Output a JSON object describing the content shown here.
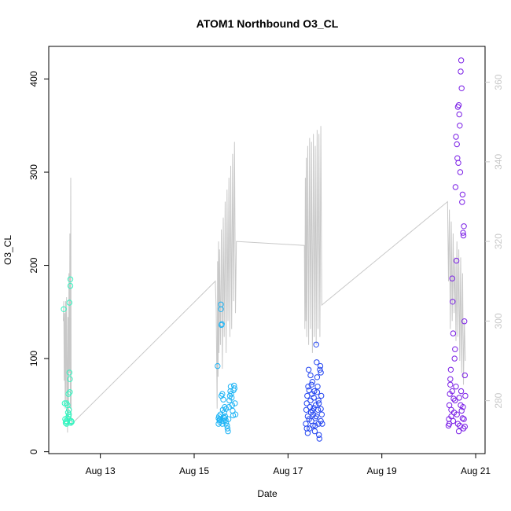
{
  "chart_data": {
    "type": "scatter",
    "title": "ATOM1 Northbound O3_CL",
    "xlabel": "Date",
    "ylabel": "O3_CL",
    "x_ticks": [
      "Aug 13",
      "Aug 15",
      "Aug 17",
      "Aug 19",
      "Aug 21"
    ],
    "x_tick_values": [
      13,
      15,
      17,
      19,
      21
    ],
    "xlim": [
      11.9,
      21.2
    ],
    "ylim": [
      -2,
      435
    ],
    "y_ticks": [
      0,
      100,
      200,
      300,
      400
    ],
    "right_axis": {
      "ylim": [
        266.7,
        369
      ],
      "ticks": [
        280,
        300,
        320,
        340,
        360
      ],
      "color": "#c8c8c8"
    },
    "grid": false,
    "series": [
      {
        "color": "#33f5c0",
        "points": [
          [
            12.22,
            153
          ],
          [
            12.24,
            52
          ],
          [
            12.25,
            35
          ],
          [
            12.26,
            31
          ],
          [
            12.27,
            33
          ],
          [
            12.28,
            30
          ],
          [
            12.29,
            32
          ],
          [
            12.3,
            50
          ],
          [
            12.31,
            42
          ],
          [
            12.32,
            62
          ],
          [
            12.33,
            45
          ],
          [
            12.34,
            85
          ],
          [
            12.34,
            160
          ],
          [
            12.35,
            64
          ],
          [
            12.35,
            78
          ],
          [
            12.36,
            178
          ],
          [
            12.36,
            185
          ],
          [
            12.37,
            31
          ],
          [
            12.38,
            33
          ],
          [
            12.39,
            32
          ],
          [
            12.3,
            36
          ],
          [
            12.32,
            38
          ],
          [
            12.28,
            52
          ],
          [
            12.33,
            40
          ]
        ]
      },
      {
        "color": "#1eb4f5",
        "points": [
          [
            15.5,
            92
          ],
          [
            15.52,
            36
          ],
          [
            15.53,
            38
          ],
          [
            15.54,
            34
          ],
          [
            15.55,
            35
          ],
          [
            15.56,
            40
          ],
          [
            15.57,
            158
          ],
          [
            15.57,
            153
          ],
          [
            15.58,
            136
          ],
          [
            15.59,
            137
          ],
          [
            15.6,
            30
          ],
          [
            15.61,
            45
          ],
          [
            15.62,
            33
          ],
          [
            15.63,
            37
          ],
          [
            15.64,
            42
          ],
          [
            15.65,
            36
          ],
          [
            15.66,
            38
          ],
          [
            15.67,
            34
          ],
          [
            15.68,
            31
          ],
          [
            15.7,
            28
          ],
          [
            15.71,
            25
          ],
          [
            15.72,
            22
          ],
          [
            15.73,
            35
          ],
          [
            15.74,
            48
          ],
          [
            15.75,
            55
          ],
          [
            15.76,
            60
          ],
          [
            15.77,
            65
          ],
          [
            15.78,
            70
          ],
          [
            15.79,
            62
          ],
          [
            15.8,
            58
          ],
          [
            15.81,
            50
          ],
          [
            15.82,
            44
          ],
          [
            15.83,
            39
          ],
          [
            15.84,
            66
          ],
          [
            15.85,
            71
          ],
          [
            15.86,
            68
          ],
          [
            15.87,
            52
          ],
          [
            15.88,
            40
          ],
          [
            15.52,
            30
          ],
          [
            15.55,
            32
          ],
          [
            15.58,
            60
          ],
          [
            15.6,
            62
          ],
          [
            15.62,
            56
          ],
          [
            15.65,
            48
          ],
          [
            15.68,
            46
          ]
        ]
      },
      {
        "color": "#2244f0",
        "points": [
          [
            17.38,
            30
          ],
          [
            17.39,
            45
          ],
          [
            17.4,
            52
          ],
          [
            17.41,
            60
          ],
          [
            17.42,
            38
          ],
          [
            17.43,
            70
          ],
          [
            17.44,
            88
          ],
          [
            17.45,
            35
          ],
          [
            17.46,
            25
          ],
          [
            17.47,
            48
          ],
          [
            17.48,
            55
          ],
          [
            17.49,
            42
          ],
          [
            17.5,
            33
          ],
          [
            17.51,
            62
          ],
          [
            17.52,
            75
          ],
          [
            17.53,
            28
          ],
          [
            17.54,
            40
          ],
          [
            17.55,
            58
          ],
          [
            17.56,
            65
          ],
          [
            17.57,
            22
          ],
          [
            17.58,
            36
          ],
          [
            17.59,
            50
          ],
          [
            17.6,
            115
          ],
          [
            17.61,
            96
          ],
          [
            17.62,
            80
          ],
          [
            17.63,
            70
          ],
          [
            17.64,
            45
          ],
          [
            17.65,
            30
          ],
          [
            17.66,
            18
          ],
          [
            17.67,
            14
          ],
          [
            17.68,
            88
          ],
          [
            17.69,
            92
          ],
          [
            17.7,
            85
          ],
          [
            17.71,
            60
          ],
          [
            17.72,
            40
          ],
          [
            17.73,
            30
          ],
          [
            17.4,
            25
          ],
          [
            17.45,
            66
          ],
          [
            17.5,
            72
          ],
          [
            17.55,
            47
          ],
          [
            17.6,
            38
          ],
          [
            17.65,
            55
          ],
          [
            17.7,
            33
          ],
          [
            17.42,
            20
          ],
          [
            17.48,
            82
          ],
          [
            17.52,
            44
          ],
          [
            17.58,
            28
          ],
          [
            17.62,
            64
          ],
          [
            17.66,
            52
          ],
          [
            17.7,
            46
          ]
        ]
      },
      {
        "color": "#7a1ee6",
        "points": [
          [
            20.42,
            28
          ],
          [
            20.43,
            35
          ],
          [
            20.44,
            50
          ],
          [
            20.45,
            62
          ],
          [
            20.46,
            78
          ],
          [
            20.47,
            88
          ],
          [
            20.48,
            45
          ],
          [
            20.5,
            186
          ],
          [
            20.51,
            161
          ],
          [
            20.52,
            127
          ],
          [
            20.53,
            57
          ],
          [
            20.55,
            100
          ],
          [
            20.56,
            110
          ],
          [
            20.57,
            284
          ],
          [
            20.58,
            338
          ],
          [
            20.59,
            205
          ],
          [
            20.6,
            330
          ],
          [
            20.61,
            315
          ],
          [
            20.62,
            370
          ],
          [
            20.63,
            310
          ],
          [
            20.64,
            372
          ],
          [
            20.65,
            362
          ],
          [
            20.66,
            350
          ],
          [
            20.67,
            300
          ],
          [
            20.68,
            408
          ],
          [
            20.69,
            420
          ],
          [
            20.7,
            390
          ],
          [
            20.71,
            268
          ],
          [
            20.72,
            276
          ],
          [
            20.73,
            235
          ],
          [
            20.74,
            232
          ],
          [
            20.75,
            242
          ],
          [
            20.76,
            140
          ],
          [
            20.77,
            82
          ],
          [
            20.78,
            60
          ],
          [
            20.6,
            40
          ],
          [
            20.62,
            30
          ],
          [
            20.64,
            22
          ],
          [
            20.66,
            28
          ],
          [
            20.68,
            50
          ],
          [
            20.7,
            44
          ],
          [
            20.72,
            36
          ],
          [
            20.74,
            25
          ],
          [
            20.58,
            70
          ],
          [
            20.56,
            55
          ],
          [
            20.54,
            42
          ],
          [
            20.52,
            33
          ],
          [
            20.5,
            65
          ],
          [
            20.48,
            38
          ],
          [
            20.46,
            72
          ],
          [
            20.44,
            30
          ],
          [
            20.65,
            58
          ],
          [
            20.69,
            65
          ],
          [
            20.73,
            48
          ],
          [
            20.75,
            35
          ],
          [
            20.77,
            27
          ]
        ]
      }
    ],
    "line_series": {
      "color": "#c8c8c8",
      "axis": "right",
      "points": [
        [
          12.21,
          300
        ],
        [
          12.22,
          305
        ],
        [
          12.23,
          285
        ],
        [
          12.24,
          302
        ],
        [
          12.25,
          278
        ],
        [
          12.26,
          305
        ],
        [
          12.27,
          280
        ],
        [
          12.28,
          306
        ],
        [
          12.3,
          272
        ],
        [
          12.31,
          301
        ],
        [
          12.32,
          275
        ],
        [
          12.33,
          312
        ],
        [
          12.34,
          287
        ],
        [
          12.35,
          322
        ],
        [
          12.36,
          278
        ],
        [
          12.37,
          336
        ],
        [
          12.38,
          274
        ],
        [
          15.45,
          310
        ],
        [
          15.47,
          303
        ],
        [
          15.49,
          278
        ],
        [
          15.5,
          315
        ],
        [
          15.51,
          286
        ],
        [
          15.52,
          320
        ],
        [
          15.53,
          292
        ],
        [
          15.54,
          318
        ],
        [
          15.56,
          294
        ],
        [
          15.58,
          323
        ],
        [
          15.6,
          288
        ],
        [
          15.62,
          326
        ],
        [
          15.64,
          296
        ],
        [
          15.66,
          330
        ],
        [
          15.68,
          292
        ],
        [
          15.7,
          333
        ],
        [
          15.72,
          300
        ],
        [
          15.74,
          336
        ],
        [
          15.76,
          296
        ],
        [
          15.78,
          339
        ],
        [
          15.8,
          298
        ],
        [
          15.82,
          342
        ],
        [
          15.84,
          305
        ],
        [
          15.86,
          345
        ],
        [
          15.88,
          302
        ],
        [
          15.9,
          320
        ],
        [
          17.35,
          319
        ],
        [
          17.36,
          298
        ],
        [
          17.37,
          336
        ],
        [
          17.38,
          300
        ],
        [
          17.39,
          341
        ],
        [
          17.4,
          296
        ],
        [
          17.42,
          344
        ],
        [
          17.44,
          294
        ],
        [
          17.46,
          346
        ],
        [
          17.48,
          298
        ],
        [
          17.5,
          345
        ],
        [
          17.52,
          292
        ],
        [
          17.54,
          347
        ],
        [
          17.56,
          296
        ],
        [
          17.58,
          344
        ],
        [
          17.6,
          294
        ],
        [
          17.62,
          348
        ],
        [
          17.64,
          298
        ],
        [
          17.66,
          347
        ],
        [
          17.68,
          296
        ],
        [
          17.7,
          349
        ],
        [
          17.72,
          304
        ],
        [
          20.4,
          330
        ],
        [
          20.42,
          310
        ],
        [
          20.44,
          328
        ],
        [
          20.46,
          298
        ],
        [
          20.48,
          325
        ],
        [
          20.5,
          300
        ],
        [
          20.52,
          322
        ],
        [
          20.54,
          302
        ],
        [
          20.56,
          316
        ],
        [
          20.58,
          295
        ],
        [
          20.6,
          320
        ],
        [
          20.62,
          296
        ],
        [
          20.64,
          318
        ],
        [
          20.66,
          290
        ],
        [
          20.68,
          316
        ],
        [
          20.7,
          287
        ],
        [
          20.72,
          312
        ],
        [
          20.74,
          284
        ],
        [
          20.76,
          300
        ],
        [
          20.78,
          290
        ]
      ]
    }
  }
}
